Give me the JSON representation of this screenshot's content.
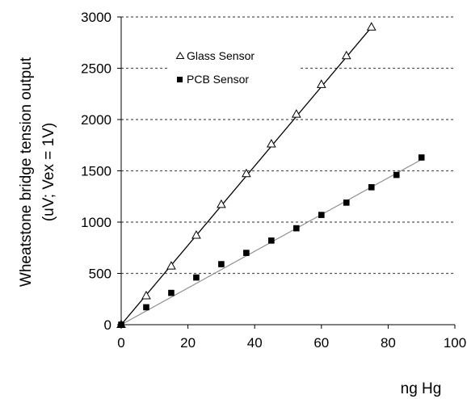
{
  "chart_data": {
    "type": "scatter",
    "xlabel": "ng Hg",
    "ylabel_line1": "Wheatstone bridge tension output",
    "ylabel_line2": "(uV; Vex = 1V)",
    "xlim": [
      0,
      100
    ],
    "ylim": [
      0,
      3000
    ],
    "xticks": [
      0,
      20,
      40,
      60,
      80,
      100
    ],
    "yticks": [
      0,
      500,
      1000,
      1500,
      2000,
      2500,
      3000
    ],
    "grid": "horizontal dotted",
    "legend_placement": "top-left",
    "series": [
      {
        "name": "Glass Sensor",
        "marker": "open-triangle",
        "color": "#000000",
        "x": [
          0,
          7.5,
          15,
          22.5,
          30,
          37.5,
          45,
          52.5,
          60,
          67.5,
          75
        ],
        "y": [
          0,
          280,
          570,
          870,
          1170,
          1470,
          1760,
          2050,
          2340,
          2620,
          2900
        ],
        "fit_line": {
          "x": [
            0,
            75
          ],
          "y": [
            0,
            2900
          ],
          "color": "#000000"
        }
      },
      {
        "name": "PCB Sensor",
        "marker": "filled-square",
        "color": "#000000",
        "x": [
          0,
          7.5,
          15,
          22.5,
          30,
          37.5,
          45,
          52.5,
          60,
          67.5,
          75,
          82.5,
          90
        ],
        "y": [
          0,
          170,
          310,
          460,
          590,
          700,
          820,
          940,
          1070,
          1190,
          1340,
          1460,
          1630
        ],
        "fit_line": {
          "x": [
            0,
            90
          ],
          "y": [
            0,
            1610
          ],
          "color": "#888888"
        }
      }
    ]
  }
}
